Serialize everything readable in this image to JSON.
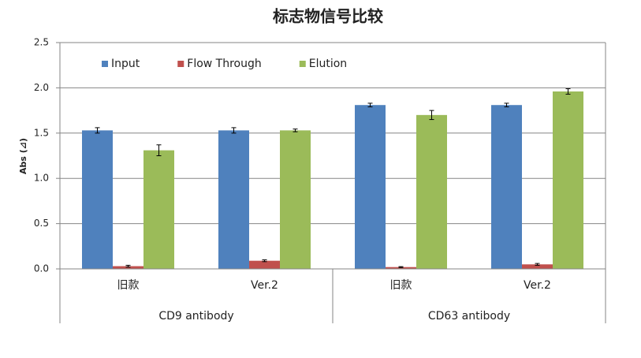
{
  "chart_data": {
    "type": "bar",
    "title": "标志物信号比较",
    "y_label": "Abs (⊿)",
    "categories": [
      "旧款",
      "Ver.2",
      "旧款",
      "Ver.2"
    ],
    "groups": [
      {
        "label": "CD9 antibody",
        "size": 2
      },
      {
        "label": "CD63 antibody",
        "size": 2
      }
    ],
    "series": [
      {
        "name": "Input",
        "color": "#4f81bd",
        "values": [
          1.53,
          1.53,
          1.81,
          1.81
        ],
        "errors": [
          0.03,
          0.03,
          0.02,
          0.02
        ]
      },
      {
        "name": "Flow Through",
        "color": "#c0504d",
        "values": [
          0.03,
          0.09,
          0.02,
          0.05
        ],
        "errors": [
          0.01,
          0.01,
          0.005,
          0.01
        ]
      },
      {
        "name": "Elution",
        "color": "#9bbb59",
        "values": [
          1.31,
          1.53,
          1.7,
          1.96
        ],
        "errors": [
          0.06,
          0.015,
          0.05,
          0.03
        ]
      }
    ],
    "ylim": [
      0,
      2.5
    ],
    "yticks": [
      {
        "value": 0,
        "label": "0.0"
      },
      0.5,
      {
        "value": 1,
        "label": "1.0"
      },
      1.5,
      {
        "value": 2,
        "label": "2.0"
      },
      2.5
    ],
    "grid": true
  }
}
